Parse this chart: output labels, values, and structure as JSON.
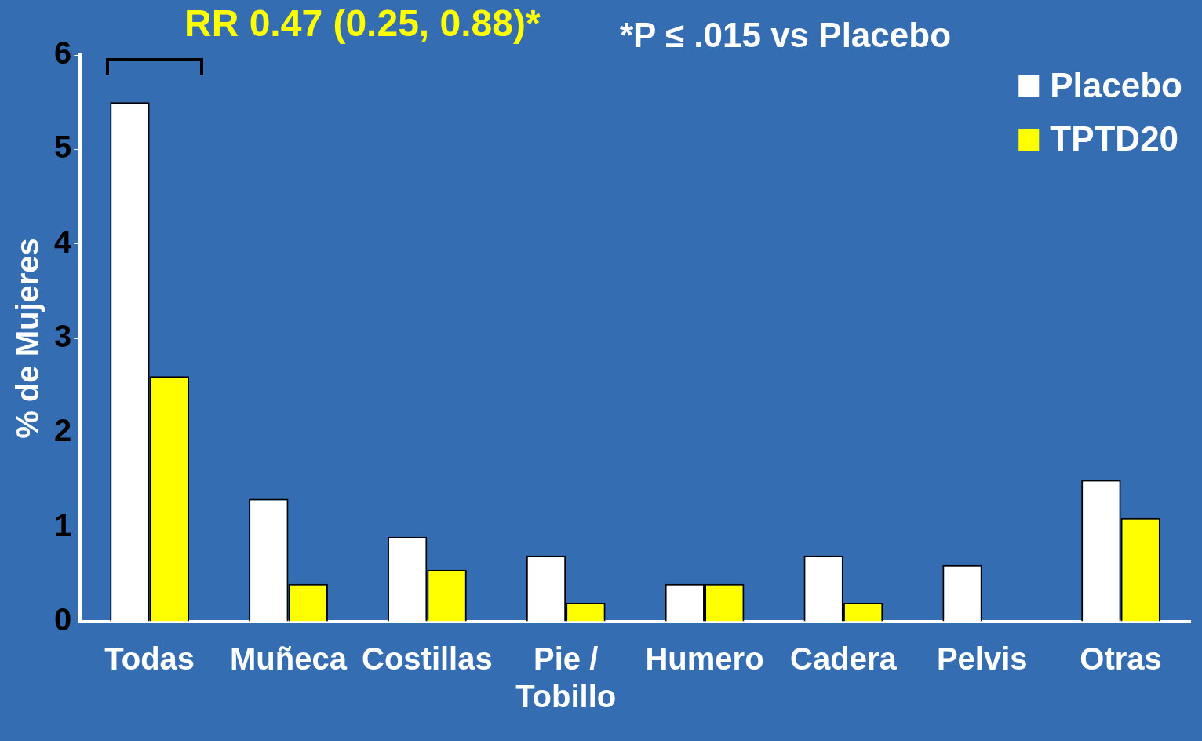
{
  "chart_data": {
    "type": "bar",
    "ylabel": "% de Mujeres",
    "categories": [
      "Todas",
      "Muñeca",
      "Costillas",
      "Pie / Tobillo",
      "Humero",
      "Cadera",
      "Pelvis",
      "Otras"
    ],
    "series": [
      {
        "name": "Placebo",
        "color": "#ffffff",
        "values": [
          5.5,
          1.3,
          0.9,
          0.7,
          0.4,
          0.7,
          0.6,
          1.5
        ]
      },
      {
        "name": "TPTD20",
        "color": "#ffff00",
        "values": [
          2.6,
          0.4,
          0.55,
          0.2,
          0.4,
          0.2,
          0,
          1.1
        ]
      }
    ],
    "ylim": [
      0,
      6
    ],
    "yticks": [
      0,
      1,
      2,
      3,
      4,
      5,
      6
    ],
    "grid": false,
    "legend": "top right",
    "annotations": [
      "RR 0.47 (0.25, 0.88)*",
      "*P ≤ .015 vs Placebo"
    ]
  }
}
